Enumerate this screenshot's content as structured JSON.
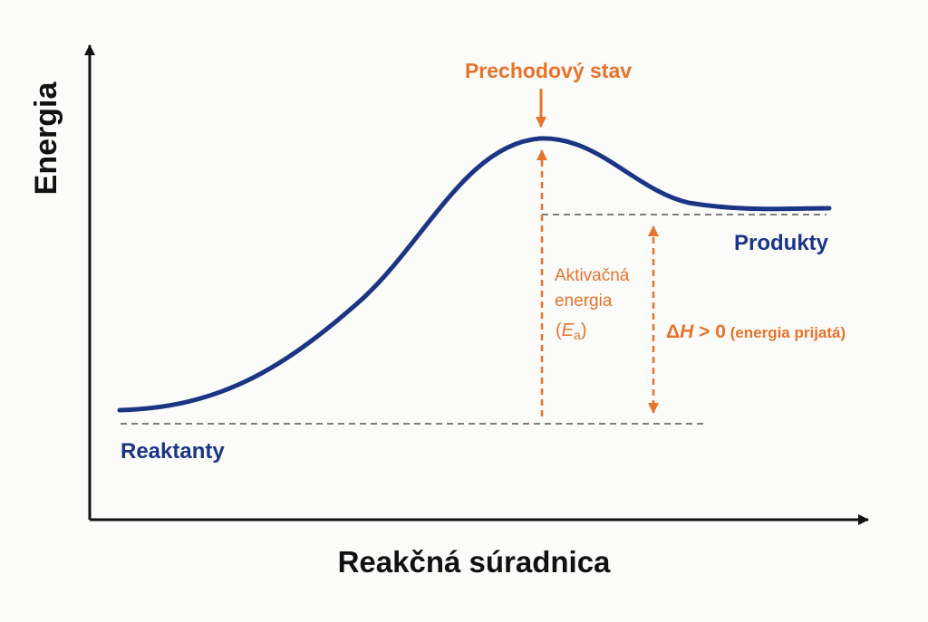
{
  "diagram": {
    "y_axis_title": "Energia",
    "x_axis_title": "Reakčná súradnica",
    "transition_state_label": "Prechodový stav",
    "products_label": "Produkty",
    "reactants_label": "Reaktanty",
    "activation_energy": {
      "line1": "Aktivačná",
      "line2": "energia",
      "symbol_open": "(",
      "symbol_main": "E",
      "symbol_sub": "a",
      "symbol_close": ")"
    },
    "enthalpy": {
      "delta": "Δ",
      "H": "H",
      "relation": " > 0",
      "note": " (energia prijatá)"
    },
    "colors": {
      "curve": "#1b3585",
      "annotation": "#e8732a",
      "axis": "#111111",
      "guide_line": "#555555"
    }
  }
}
